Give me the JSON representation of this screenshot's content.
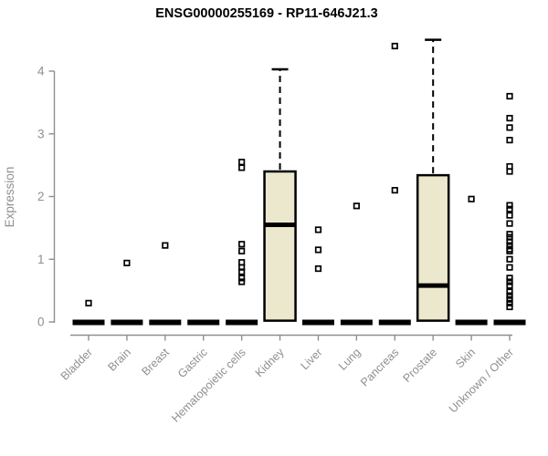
{
  "chart_data": {
    "type": "boxplot",
    "title": "ENSG00000255169 - RP11-646J21.3",
    "ylabel": "Expression",
    "xlabel": "",
    "ylim": [
      0,
      4.6
    ],
    "yticks": [
      0,
      1,
      2,
      3,
      4
    ],
    "grid": false,
    "legend": "none",
    "categories": [
      "Bladder",
      "Brain",
      "Breast",
      "Gastric",
      "Hematopoietic cells",
      "Kidney",
      "Liver",
      "Lung",
      "Pancreas",
      "Prostate",
      "Skin",
      "Unknown / Other"
    ],
    "series": [
      {
        "category": "Bladder",
        "zero_bar": true,
        "box": null,
        "outliers": [
          0.3
        ]
      },
      {
        "category": "Brain",
        "zero_bar": true,
        "box": null,
        "outliers": [
          0.94
        ]
      },
      {
        "category": "Breast",
        "zero_bar": true,
        "box": null,
        "outliers": [
          1.22
        ]
      },
      {
        "category": "Gastric",
        "zero_bar": true,
        "box": null,
        "outliers": []
      },
      {
        "category": "Hematopoietic cells",
        "zero_bar": true,
        "box": null,
        "outliers": [
          2.55,
          2.46,
          1.24,
          1.13,
          0.95,
          0.87,
          0.8,
          0.7,
          0.64
        ]
      },
      {
        "category": "Kidney",
        "zero_bar": false,
        "box": {
          "q1": 0.02,
          "median": 1.55,
          "q3": 2.4,
          "whisker_high": 4.03
        },
        "outliers": []
      },
      {
        "category": "Liver",
        "zero_bar": true,
        "box": null,
        "outliers": [
          1.47,
          1.15,
          0.85
        ]
      },
      {
        "category": "Lung",
        "zero_bar": true,
        "box": null,
        "outliers": [
          1.85
        ]
      },
      {
        "category": "Pancreas",
        "zero_bar": true,
        "box": null,
        "outliers": [
          4.4,
          2.1
        ]
      },
      {
        "category": "Prostate",
        "zero_bar": false,
        "box": {
          "q1": 0.02,
          "median": 0.58,
          "q3": 2.34,
          "whisker_high": 4.5
        },
        "outliers": []
      },
      {
        "category": "Skin",
        "zero_bar": true,
        "box": null,
        "outliers": [
          1.96
        ]
      },
      {
        "category": "Unknown / Other",
        "zero_bar": true,
        "box": null,
        "outliers": [
          3.6,
          3.25,
          3.1,
          2.9,
          2.48,
          2.4,
          1.86,
          1.8,
          1.7,
          1.57,
          1.4,
          1.35,
          1.28,
          1.22,
          1.16,
          1.13,
          1.0,
          0.87,
          0.7,
          0.64,
          0.58,
          0.48,
          0.42,
          0.36,
          0.3,
          0.24
        ]
      }
    ],
    "colors": {
      "box_fill": "#ece8cd",
      "box_stroke": "#000000",
      "median": "#000000",
      "outlier": "#000000",
      "axis": "#8f8f8f",
      "title": "#000000",
      "background": "#ffffff"
    }
  }
}
